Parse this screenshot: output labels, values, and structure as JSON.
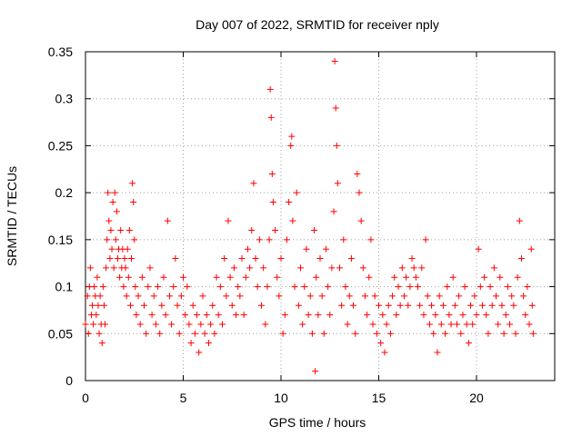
{
  "chart_data": {
    "type": "scatter",
    "title": "Day 007 of 2022, SRMTID for receiver nply",
    "xlabel": "GPS time / hours",
    "ylabel": "SRMTID / TECUs",
    "xlim": [
      0,
      24
    ],
    "ylim": [
      0,
      0.35
    ],
    "x_ticks": [
      0,
      5,
      10,
      15,
      20
    ],
    "x_tick_labels": [
      "0",
      "5",
      "10",
      "15",
      "20"
    ],
    "y_ticks": [
      0,
      0.05,
      0.1,
      0.15,
      0.2,
      0.25,
      0.3,
      0.35
    ],
    "y_tick_labels": [
      "0",
      "0.05",
      "0.1",
      "0.15",
      "0.2",
      "0.25",
      "0.3",
      "0.35"
    ],
    "grid": true,
    "marker": "+",
    "color": "#ff0000",
    "series": [
      {
        "name": "SRMTID",
        "points": [
          [
            0.0,
            0.06
          ],
          [
            0.1,
            0.09
          ],
          [
            0.15,
            0.05
          ],
          [
            0.2,
            0.1
          ],
          [
            0.25,
            0.12
          ],
          [
            0.3,
            0.07
          ],
          [
            0.35,
            0.08
          ],
          [
            0.4,
            0.06
          ],
          [
            0.45,
            0.1
          ],
          [
            0.5,
            0.09
          ],
          [
            0.55,
            0.07
          ],
          [
            0.6,
            0.11
          ],
          [
            0.65,
            0.08
          ],
          [
            0.7,
            0.05
          ],
          [
            0.75,
            0.09
          ],
          [
            0.8,
            0.06
          ],
          [
            0.85,
            0.04
          ],
          [
            0.9,
            0.1
          ],
          [
            0.95,
            0.08
          ],
          [
            1.0,
            0.06
          ],
          [
            1.05,
            0.12
          ],
          [
            1.1,
            0.15
          ],
          [
            1.15,
            0.2
          ],
          [
            1.2,
            0.17
          ],
          [
            1.25,
            0.13
          ],
          [
            1.3,
            0.16
          ],
          [
            1.35,
            0.14
          ],
          [
            1.4,
            0.19
          ],
          [
            1.45,
            0.12
          ],
          [
            1.5,
            0.2
          ],
          [
            1.55,
            0.15
          ],
          [
            1.6,
            0.18
          ],
          [
            1.65,
            0.13
          ],
          [
            1.7,
            0.14
          ],
          [
            1.75,
            0.11
          ],
          [
            1.8,
            0.16
          ],
          [
            1.85,
            0.12
          ],
          [
            1.9,
            0.14
          ],
          [
            1.95,
            0.1
          ],
          [
            2.0,
            0.13
          ],
          [
            2.05,
            0.12
          ],
          [
            2.1,
            0.09
          ],
          [
            2.15,
            0.14
          ],
          [
            2.2,
            0.11
          ],
          [
            2.25,
            0.16
          ],
          [
            2.3,
            0.08
          ],
          [
            2.35,
            0.13
          ],
          [
            2.4,
            0.21
          ],
          [
            2.45,
            0.19
          ],
          [
            2.5,
            0.15
          ],
          [
            2.55,
            0.1
          ],
          [
            2.6,
            0.07
          ],
          [
            2.7,
            0.09
          ],
          [
            2.8,
            0.06
          ],
          [
            2.9,
            0.11
          ],
          [
            3.0,
            0.08
          ],
          [
            3.1,
            0.05
          ],
          [
            3.2,
            0.1
          ],
          [
            3.3,
            0.12
          ],
          [
            3.4,
            0.07
          ],
          [
            3.5,
            0.09
          ],
          [
            3.6,
            0.06
          ],
          [
            3.7,
            0.1
          ],
          [
            3.8,
            0.05
          ],
          [
            3.9,
            0.08
          ],
          [
            4.0,
            0.11
          ],
          [
            4.1,
            0.07
          ],
          [
            4.2,
            0.17
          ],
          [
            4.3,
            0.09
          ],
          [
            4.4,
            0.06
          ],
          [
            4.5,
            0.1
          ],
          [
            4.6,
            0.13
          ],
          [
            4.7,
            0.08
          ],
          [
            4.8,
            0.05
          ],
          [
            4.9,
            0.09
          ],
          [
            5.0,
            0.11
          ],
          [
            5.1,
            0.07
          ],
          [
            5.2,
            0.1
          ],
          [
            5.3,
            0.06
          ],
          [
            5.4,
            0.04
          ],
          [
            5.5,
            0.08
          ],
          [
            5.6,
            0.05
          ],
          [
            5.7,
            0.07
          ],
          [
            5.8,
            0.03
          ],
          [
            5.9,
            0.06
          ],
          [
            6.0,
            0.09
          ],
          [
            6.1,
            0.05
          ],
          [
            6.2,
            0.07
          ],
          [
            6.3,
            0.04
          ],
          [
            6.4,
            0.06
          ],
          [
            6.5,
            0.08
          ],
          [
            6.6,
            0.05
          ],
          [
            6.7,
            0.11
          ],
          [
            6.8,
            0.07
          ],
          [
            6.9,
            0.1
          ],
          [
            7.0,
            0.06
          ],
          [
            7.1,
            0.13
          ],
          [
            7.2,
            0.09
          ],
          [
            7.3,
            0.17
          ],
          [
            7.4,
            0.11
          ],
          [
            7.5,
            0.08
          ],
          [
            7.6,
            0.12
          ],
          [
            7.7,
            0.07
          ],
          [
            7.8,
            0.1
          ],
          [
            7.9,
            0.09
          ],
          [
            8.0,
            0.13
          ],
          [
            8.1,
            0.07
          ],
          [
            8.2,
            0.11
          ],
          [
            8.3,
            0.14
          ],
          [
            8.4,
            0.12
          ],
          [
            8.5,
            0.16
          ],
          [
            8.6,
            0.21
          ],
          [
            8.7,
            0.13
          ],
          [
            8.8,
            0.1
          ],
          [
            8.9,
            0.15
          ],
          [
            9.0,
            0.08
          ],
          [
            9.1,
            0.12
          ],
          [
            9.2,
            0.06
          ],
          [
            9.3,
            0.1
          ],
          [
            9.4,
            0.15
          ],
          [
            9.45,
            0.31
          ],
          [
            9.5,
            0.28
          ],
          [
            9.55,
            0.22
          ],
          [
            9.6,
            0.19
          ],
          [
            9.7,
            0.16
          ],
          [
            9.8,
            0.11
          ],
          [
            9.9,
            0.09
          ],
          [
            10.0,
            0.13
          ],
          [
            10.1,
            0.05
          ],
          [
            10.2,
            0.07
          ],
          [
            10.3,
            0.15
          ],
          [
            10.4,
            0.19
          ],
          [
            10.5,
            0.25
          ],
          [
            10.55,
            0.26
          ],
          [
            10.6,
            0.17
          ],
          [
            10.7,
            0.1
          ],
          [
            10.8,
            0.2
          ],
          [
            10.9,
            0.08
          ],
          [
            11.0,
            0.12
          ],
          [
            11.1,
            0.06
          ],
          [
            11.2,
            0.1
          ],
          [
            11.3,
            0.14
          ],
          [
            11.4,
            0.07
          ],
          [
            11.5,
            0.09
          ],
          [
            11.6,
            0.05
          ],
          [
            11.7,
            0.16
          ],
          [
            11.75,
            0.01
          ],
          [
            11.8,
            0.11
          ],
          [
            11.9,
            0.07
          ],
          [
            12.0,
            0.13
          ],
          [
            12.1,
            0.09
          ],
          [
            12.2,
            0.05
          ],
          [
            12.3,
            0.14
          ],
          [
            12.4,
            0.1
          ],
          [
            12.5,
            0.07
          ],
          [
            12.6,
            0.12
          ],
          [
            12.7,
            0.18
          ],
          [
            12.75,
            0.34
          ],
          [
            12.8,
            0.29
          ],
          [
            12.85,
            0.25
          ],
          [
            12.9,
            0.21
          ],
          [
            13.0,
            0.12
          ],
          [
            13.1,
            0.08
          ],
          [
            13.2,
            0.15
          ],
          [
            13.3,
            0.1
          ],
          [
            13.4,
            0.06
          ],
          [
            13.5,
            0.09
          ],
          [
            13.6,
            0.13
          ],
          [
            13.7,
            0.08
          ],
          [
            13.8,
            0.05
          ],
          [
            13.9,
            0.22
          ],
          [
            14.0,
            0.2
          ],
          [
            14.1,
            0.17
          ],
          [
            14.2,
            0.12
          ],
          [
            14.3,
            0.09
          ],
          [
            14.4,
            0.07
          ],
          [
            14.5,
            0.11
          ],
          [
            14.6,
            0.15
          ],
          [
            14.7,
            0.06
          ],
          [
            14.8,
            0.09
          ],
          [
            14.9,
            0.05
          ],
          [
            15.0,
            0.08
          ],
          [
            15.1,
            0.04
          ],
          [
            15.2,
            0.07
          ],
          [
            15.3,
            0.03
          ],
          [
            15.4,
            0.06
          ],
          [
            15.5,
            0.08
          ],
          [
            15.6,
            0.05
          ],
          [
            15.7,
            0.09
          ],
          [
            15.8,
            0.11
          ],
          [
            15.9,
            0.07
          ],
          [
            16.0,
            0.1
          ],
          [
            16.1,
            0.08
          ],
          [
            16.2,
            0.12
          ],
          [
            16.3,
            0.09
          ],
          [
            16.4,
            0.11
          ],
          [
            16.5,
            0.08
          ],
          [
            16.6,
            0.1
          ],
          [
            16.7,
            0.13
          ],
          [
            16.8,
            0.12
          ],
          [
            16.9,
            0.11
          ],
          [
            17.0,
            0.1
          ],
          [
            17.1,
            0.08
          ],
          [
            17.2,
            0.12
          ],
          [
            17.3,
            0.07
          ],
          [
            17.4,
            0.15
          ],
          [
            17.5,
            0.09
          ],
          [
            17.6,
            0.06
          ],
          [
            17.7,
            0.08
          ],
          [
            17.8,
            0.05
          ],
          [
            17.9,
            0.07
          ],
          [
            18.0,
            0.03
          ],
          [
            18.1,
            0.09
          ],
          [
            18.2,
            0.06
          ],
          [
            18.3,
            0.08
          ],
          [
            18.4,
            0.05
          ],
          [
            18.5,
            0.1
          ],
          [
            18.6,
            0.07
          ],
          [
            18.7,
            0.06
          ],
          [
            18.8,
            0.11
          ],
          [
            18.9,
            0.08
          ],
          [
            19.0,
            0.06
          ],
          [
            19.1,
            0.09
          ],
          [
            19.2,
            0.05
          ],
          [
            19.3,
            0.07
          ],
          [
            19.4,
            0.1
          ],
          [
            19.5,
            0.06
          ],
          [
            19.6,
            0.04
          ],
          [
            19.7,
            0.08
          ],
          [
            19.8,
            0.06
          ],
          [
            19.9,
            0.09
          ],
          [
            20.0,
            0.07
          ],
          [
            20.1,
            0.14
          ],
          [
            20.2,
            0.1
          ],
          [
            20.3,
            0.08
          ],
          [
            20.4,
            0.11
          ],
          [
            20.5,
            0.07
          ],
          [
            20.6,
            0.05
          ],
          [
            20.7,
            0.1
          ],
          [
            20.8,
            0.08
          ],
          [
            20.9,
            0.12
          ],
          [
            21.0,
            0.09
          ],
          [
            21.1,
            0.06
          ],
          [
            21.2,
            0.11
          ],
          [
            21.3,
            0.08
          ],
          [
            21.4,
            0.05
          ],
          [
            21.5,
            0.07
          ],
          [
            21.6,
            0.1
          ],
          [
            21.7,
            0.06
          ],
          [
            21.8,
            0.09
          ],
          [
            21.9,
            0.08
          ],
          [
            22.0,
            0.05
          ],
          [
            22.1,
            0.11
          ],
          [
            22.2,
            0.17
          ],
          [
            22.3,
            0.13
          ],
          [
            22.4,
            0.09
          ],
          [
            22.5,
            0.07
          ],
          [
            22.6,
            0.1
          ],
          [
            22.7,
            0.06
          ],
          [
            22.8,
            0.14
          ],
          [
            22.85,
            0.08
          ],
          [
            22.9,
            0.05
          ]
        ]
      }
    ]
  }
}
